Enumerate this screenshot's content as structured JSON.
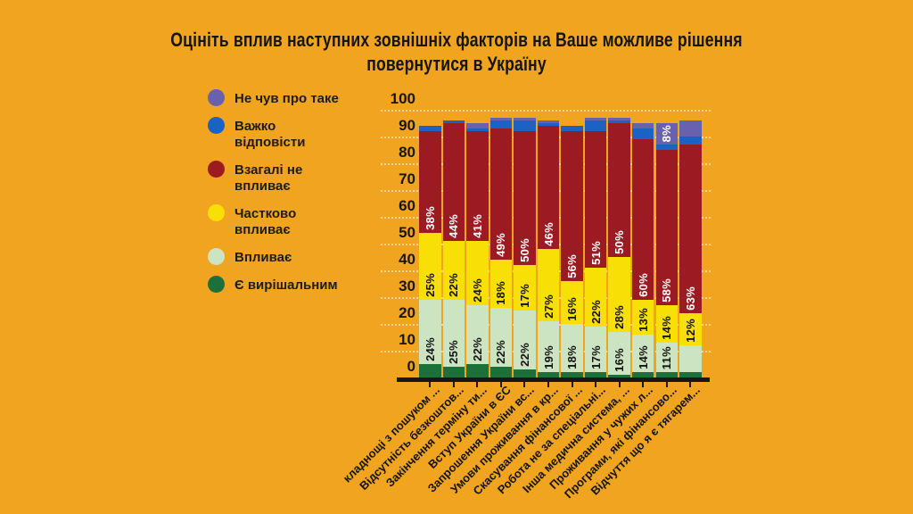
{
  "page": {
    "background": "#F0A41F"
  },
  "title": {
    "line1": "Оцініть вплив наступних зовнішніх факторів на Ваше можливе рішення",
    "line2": "повернутися в Україну"
  },
  "chart_data": {
    "type": "bar",
    "stacked": true,
    "title": "Оцініть вплив наступних зовнішніх факторів на Ваше можливе рішення повернутися в Україну",
    "xlabel": "",
    "ylabel": "",
    "ylim": [
      0,
      100
    ],
    "yticks": [
      0,
      10,
      20,
      30,
      40,
      50,
      60,
      70,
      80,
      90,
      100
    ],
    "grid": true,
    "legend_position": "left",
    "background_color": "#F0A41F",
    "axis_color": "#161616",
    "grid_color": "#FFFFFF",
    "legend": [
      {
        "label": "Не чув про таке",
        "color": "#6A61AE"
      },
      {
        "label": "Важко відповісти",
        "color": "#1A63C4"
      },
      {
        "label": "Взагалі не впливає",
        "color": "#9C1B22"
      },
      {
        "label": "Частково впливає",
        "color": "#F8DF05"
      },
      {
        "label": "Впливає",
        "color": "#CDE4C3"
      },
      {
        "label": "Є вирішальним",
        "color": "#1B7139"
      }
    ],
    "categories": [
      "кладнощі з пошуком ...",
      "Відсутність безкоштов...",
      "Закінчення терміну ти...",
      "Вступ України в ЄС",
      "Запрошення України вс...",
      "Умови проживання в кр...",
      "Скасування фінансової ...",
      "Робота не за спеціальні...",
      "Інша медична система, ...",
      "Проживання у чужих л...",
      "Програми, які фінансово...",
      "Відчуття що я є тягарем..."
    ],
    "series": [
      {
        "name": "Є вирішальним",
        "color": "#1B7139",
        "label_color": "#FFFFFF",
        "values": [
          5,
          4,
          5,
          4,
          3,
          2,
          2,
          2,
          1,
          2,
          2,
          2
        ],
        "value_labels": [
          null,
          null,
          null,
          null,
          null,
          null,
          null,
          null,
          null,
          null,
          null,
          null
        ]
      },
      {
        "name": "Впливає",
        "color": "#CDE4C3",
        "label_color": "#141414",
        "values": [
          24,
          25,
          22,
          22,
          22,
          19,
          18,
          17,
          16,
          14,
          11,
          10
        ],
        "value_labels": [
          "24%",
          "25%",
          "22%",
          "22%",
          "22%",
          "19%",
          "18%",
          "17%",
          "16%",
          "14%",
          "11%",
          null
        ]
      },
      {
        "name": "Частково впливає",
        "color": "#F8DF05",
        "label_color": "#141414",
        "values": [
          25,
          22,
          24,
          18,
          17,
          27,
          16,
          22,
          28,
          13,
          14,
          12
        ],
        "value_labels": [
          "25%",
          "22%",
          "24%",
          "18%",
          "17%",
          "27%",
          "16%",
          "22%",
          "28%",
          "13%",
          "14%",
          "12%"
        ]
      },
      {
        "name": "Взагалі не впливає",
        "color": "#9C1B22",
        "label_color": "#FFFFFF",
        "values": [
          38,
          44,
          41,
          49,
          50,
          46,
          56,
          51,
          50,
          60,
          58,
          63
        ],
        "value_labels": [
          "38%",
          "44%",
          "41%",
          "49%",
          "50%",
          "46%",
          "56%",
          "51%",
          "50%",
          "60%",
          "58%",
          "63%"
        ]
      },
      {
        "name": "Важко відповісти",
        "color": "#1A63C4",
        "label_color": "#FFFFFF",
        "values": [
          2,
          1,
          1,
          3,
          4,
          1,
          2,
          4,
          1,
          4,
          2,
          3
        ],
        "value_labels": [
          null,
          null,
          null,
          null,
          null,
          null,
          null,
          null,
          null,
          null,
          null,
          null
        ]
      },
      {
        "name": "Не чув про таке",
        "color": "#6A61AE",
        "label_color": "#FFFFFF",
        "values": [
          0,
          0,
          2,
          1,
          1,
          1,
          0,
          1,
          1,
          2,
          8,
          6
        ],
        "value_labels": [
          null,
          null,
          null,
          null,
          null,
          null,
          null,
          null,
          null,
          null,
          "8%",
          null
        ]
      }
    ]
  }
}
